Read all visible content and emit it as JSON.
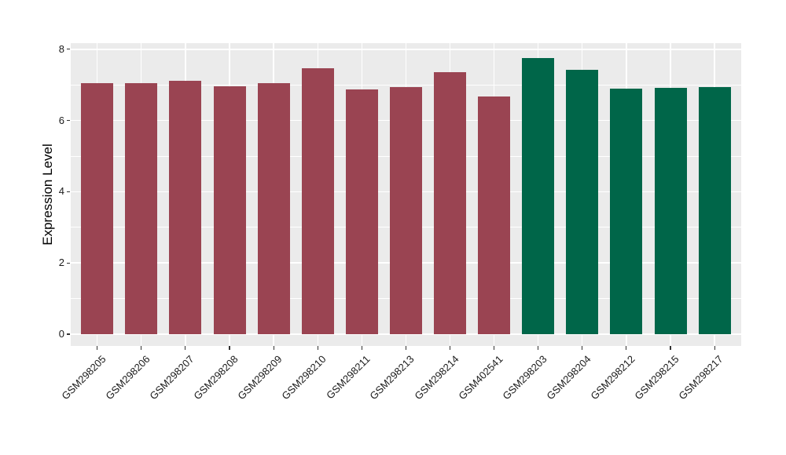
{
  "chart_data": {
    "type": "bar",
    "title": "",
    "xlabel": "",
    "ylabel": "Expression Level",
    "ylim": [
      0,
      8.17
    ],
    "yticks": [
      0,
      2,
      4,
      6,
      8
    ],
    "yminor": [
      1,
      3,
      5,
      7
    ],
    "grid": "on",
    "legend_position": "none",
    "categories": [
      "GSM298205",
      "GSM298206",
      "GSM298207",
      "GSM298208",
      "GSM298209",
      "GSM298210",
      "GSM298211",
      "GSM298213",
      "GSM298214",
      "GSM402541",
      "GSM298203",
      "GSM298204",
      "GSM298212",
      "GSM298215",
      "GSM298217"
    ],
    "values": [
      7.05,
      7.05,
      7.12,
      6.96,
      7.05,
      7.47,
      6.87,
      6.94,
      7.36,
      6.68,
      7.75,
      7.42,
      6.9,
      6.92,
      6.94
    ],
    "groups": [
      "groupA",
      "groupA",
      "groupA",
      "groupA",
      "groupA",
      "groupA",
      "groupA",
      "groupA",
      "groupA",
      "groupA",
      "groupB",
      "groupB",
      "groupB",
      "groupB",
      "groupB"
    ],
    "colors": {
      "groupA": "#9A4452",
      "groupB": "#006649",
      "panel_bg": "#EBEBEB",
      "grid": "#FFFFFF",
      "tick_mark": "#333333",
      "tick_text": "#1A1A1A",
      "axis_title_text": "#000000"
    }
  }
}
